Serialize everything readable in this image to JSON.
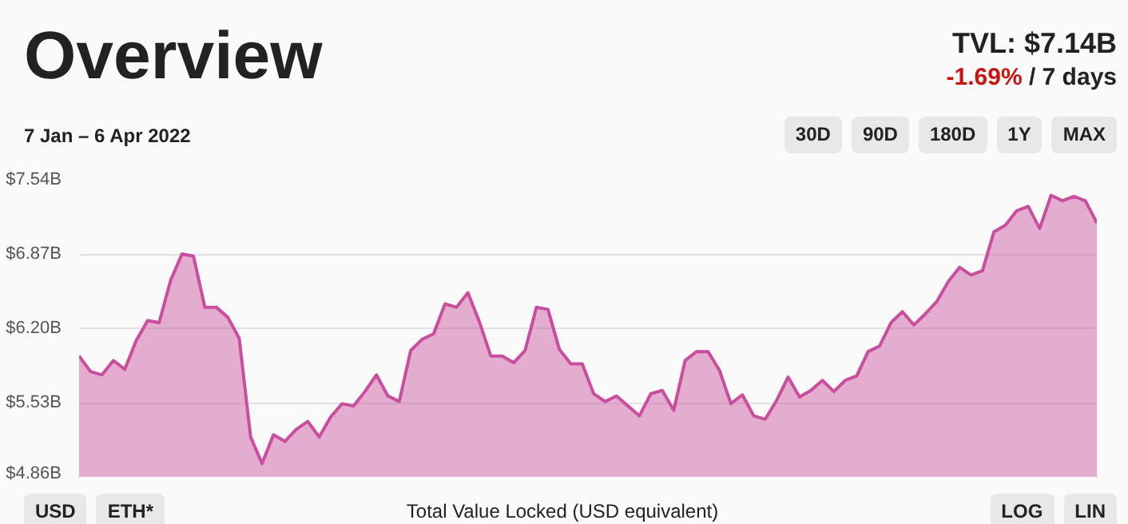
{
  "chart_data": {
    "type": "area",
    "title": "Overview",
    "subtitle": "7 Jan – 6 Apr 2022",
    "xlabel": "Total Value Locked (USD equivalent)",
    "annotations": [
      "TVL: $7.14B",
      "-1.69% / 7 days",
      "30D",
      "90D",
      "180D",
      "1Y",
      "MAX",
      "USD",
      "ETH*",
      "LOG",
      "LIN"
    ],
    "categories": [
      null,
      null,
      null,
      null,
      null,
      null,
      null,
      null,
      null,
      null,
      null,
      null,
      null,
      null,
      null,
      null,
      null,
      null,
      null,
      null,
      null,
      null,
      null,
      null,
      null,
      null,
      null,
      null,
      null,
      null,
      null,
      null,
      null,
      null,
      null,
      null,
      null,
      null,
      null,
      null,
      null,
      null,
      null,
      null,
      null,
      null,
      null,
      null,
      null,
      null,
      null,
      null,
      null,
      null,
      null,
      null,
      null,
      null,
      null,
      null,
      null,
      null,
      null,
      null,
      null,
      null,
      null,
      null,
      null,
      null,
      null,
      null,
      null,
      null,
      null,
      null,
      null,
      null,
      null,
      null,
      null,
      null,
      null,
      null,
      null,
      null,
      null,
      null,
      null,
      null
    ],
    "series": [
      {
        "color": "#c94f9e",
        "values": [
          5.95,
          5.81,
          5.78,
          5.91,
          5.83,
          6.09,
          6.27,
          6.25,
          6.63,
          6.87,
          6.85,
          6.39,
          6.39,
          6.3,
          6.11,
          5.22,
          4.98,
          5.24,
          5.18,
          5.29,
          5.36,
          5.22,
          5.4,
          5.52,
          5.5,
          5.63,
          5.78,
          5.59,
          5.54,
          6.0,
          6.1,
          6.15,
          6.42,
          6.39,
          6.52,
          6.26,
          5.95,
          5.95,
          5.89,
          6.0,
          6.39,
          6.37,
          6.01,
          5.88,
          5.88,
          5.61,
          5.54,
          5.59,
          5.5,
          5.41,
          5.61,
          5.64,
          5.46,
          5.91,
          5.99,
          5.99,
          5.82,
          5.52,
          5.6,
          5.41,
          5.38,
          5.55,
          5.76,
          5.58,
          5.64,
          5.73,
          5.63,
          5.73,
          5.77,
          5.99,
          6.04,
          6.25,
          6.35,
          6.23,
          6.33,
          6.44,
          6.62,
          6.75,
          6.68,
          6.72,
          7.07,
          7.13,
          7.26,
          7.3,
          7.1,
          7.4,
          7.35,
          7.39,
          7.35,
          7.15
        ]
      }
    ],
    "ylim": [
      4.86,
      7.54
    ],
    "yticks": [
      {
        "value": 4.86,
        "label": "$4.86B"
      },
      {
        "value": 5.53,
        "label": "$5.53B"
      },
      {
        "value": 6.2,
        "label": "$6.20B"
      },
      {
        "value": 6.87,
        "label": "$6.87B"
      },
      {
        "value": 7.54,
        "label": "$7.54B"
      }
    ],
    "tick_labels": "y",
    "grid": "y"
  }
}
